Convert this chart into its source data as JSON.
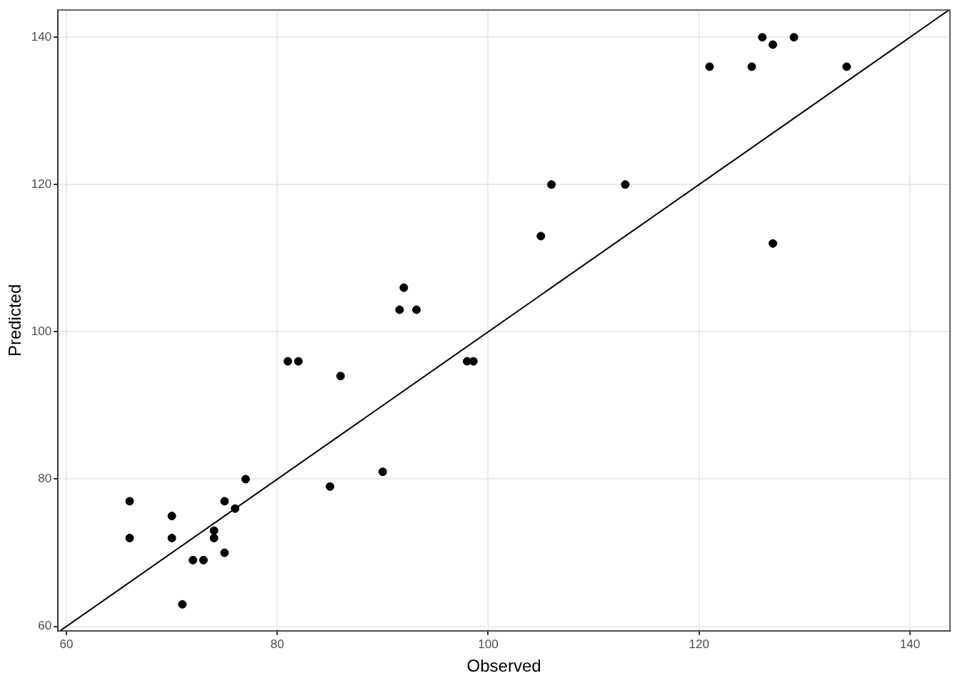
{
  "chart_data": {
    "type": "scatter",
    "xlabel": "Observed",
    "ylabel": "Predicted",
    "xlim": [
      59.2,
      143.8
    ],
    "ylim": [
      59.4,
      143.7
    ],
    "xticks": [
      60,
      80,
      100,
      120,
      140
    ],
    "yticks": [
      60,
      80,
      100,
      120,
      140
    ],
    "grid": true,
    "legend": false,
    "marker": "circle",
    "series": [
      {
        "color": "#000000",
        "x": [
          66,
          66,
          70,
          70,
          71,
          72,
          73,
          74,
          74,
          75,
          75,
          76,
          77,
          81,
          82,
          85,
          86,
          90,
          91.6,
          92,
          93.2,
          98,
          98.6,
          105,
          106,
          113,
          121,
          125,
          126,
          127,
          127,
          129,
          134
        ],
        "values": [
          77,
          72,
          75,
          72,
          63,
          69,
          69,
          73,
          72,
          77,
          70,
          76,
          80,
          96,
          96,
          79,
          94,
          81,
          103,
          106,
          103,
          96,
          96,
          113,
          120,
          120,
          136,
          136,
          140,
          139,
          112,
          140,
          136
        ]
      },
      {
        "type": "line",
        "color": "#000000",
        "marker": "none",
        "line_style": "solid",
        "x": [
          59.4,
          143.7
        ],
        "values": [
          59.4,
          143.7
        ]
      }
    ]
  }
}
